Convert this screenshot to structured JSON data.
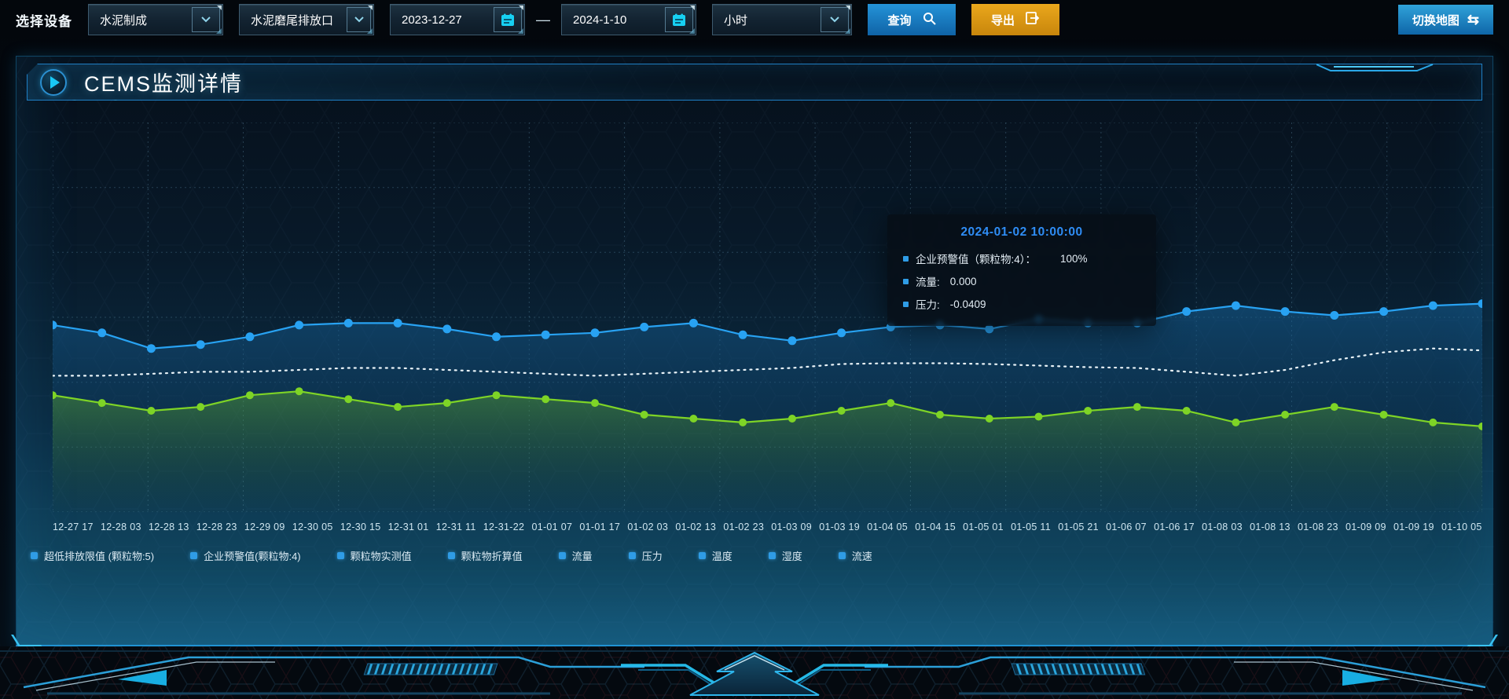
{
  "toolbar": {
    "device_label": "选择设备",
    "device_select": {
      "value": "水泥制成"
    },
    "outlet_select": {
      "value": "水泥磨尾排放口"
    },
    "date_start": {
      "value": "2023-12-27"
    },
    "range_separator": "—",
    "date_end": {
      "value": "2024-1-10"
    },
    "interval_select": {
      "value": "小时"
    },
    "query_button": "查询",
    "export_button": "导出",
    "switch_map_button": "切换地图",
    "swap_icon_glyph": "⇆"
  },
  "panel": {
    "title": "CEMS监测详情"
  },
  "tooltip": {
    "title": "2024-01-02 10:00:00",
    "marker_color": "#2f9ce6",
    "rows": [
      {
        "label": "企业预警值（颗粒物:4）：",
        "value": "100%",
        "wide_gap": true
      },
      {
        "label": "流量:",
        "value": "0.000",
        "wide_gap": false
      },
      {
        "label": "压力:",
        "value": "-0.0409",
        "wide_gap": false
      }
    ]
  },
  "legend": {
    "marker_color": "#2f9ce6",
    "items": [
      "超低排放限值 (颗粒物:5)",
      "企业预警值(颗粒物:4)",
      "颗粒物实测值",
      "颗粒物折算值",
      "流量",
      "压力",
      "温度",
      "湿度",
      "流速"
    ]
  },
  "chart_data": {
    "type": "line",
    "title": "CEMS监测详情",
    "xlabel": "",
    "ylabel": "",
    "ylim": [
      0,
      100
    ],
    "y_tick_labels_visible": false,
    "grid": {
      "rows": 6,
      "cols": 15,
      "style": "dashed",
      "color": "rgba(120,175,205,0.28)"
    },
    "x": [
      "12-27 17",
      "12-28 03",
      "12-28 13",
      "12-28 23",
      "12-29 09",
      "12-30 05",
      "12-30 15",
      "12-31 01",
      "12-31 11",
      "12-31-22",
      "01-01 07",
      "01-01 17",
      "01-02 03",
      "01-02 13",
      "01-02 23",
      "01-03 09",
      "01-03 19",
      "01-04 05",
      "01-04 15",
      "01-05 01",
      "01-05 11",
      "01-05 21",
      "01-06 07",
      "01-06 17",
      "01-08 03",
      "01-08 13",
      "01-08 23",
      "01-09 09",
      "01-09 19",
      "01-10 05"
    ],
    "series": [
      {
        "name": "blue-line",
        "color": "#28a2f2",
        "line": "solid",
        "dots": true,
        "dot_radius": 5.5,
        "area": true,
        "area_from": "rgba(21,96,150,0.55)",
        "area_to": "rgba(10,40,70,0.05)",
        "values": [
          48,
          46,
          42,
          43,
          45,
          48,
          48.5,
          48.5,
          47,
          45,
          45.5,
          46,
          47.5,
          48.5,
          45.5,
          44,
          46,
          47.5,
          48,
          47,
          49.5,
          48.5,
          48.5,
          51.5,
          53,
          51.5,
          50.5,
          51.5,
          53,
          53.5
        ]
      },
      {
        "name": "white-dotted-line",
        "color": "#e9f3f8",
        "line": "dotted",
        "dots": false,
        "area": false,
        "values": [
          35,
          35,
          35.5,
          36,
          36,
          36.5,
          37,
          37,
          36.5,
          36,
          35.5,
          35,
          35.5,
          36,
          36.5,
          37,
          38,
          38.2,
          38.2,
          38,
          37.6,
          37.2,
          37,
          36,
          35,
          36.5,
          39,
          41,
          42,
          41.5
        ]
      },
      {
        "name": "green-line",
        "color": "#7ed426",
        "line": "solid",
        "dots": true,
        "dot_radius": 5,
        "area": true,
        "area_from": "rgba(116,204,40,0.35)",
        "area_to": "rgba(60,120,30,0.02)",
        "values": [
          30,
          28,
          26,
          27,
          30,
          31,
          29,
          27,
          28,
          30,
          29,
          28,
          25,
          24,
          23,
          24,
          26,
          28,
          25,
          24,
          24.5,
          26,
          27,
          26,
          23,
          25,
          27,
          25,
          23,
          22
        ]
      }
    ],
    "legend_entries": [
      "超低排放限值 (颗粒物:5)",
      "企业预警值(颗粒物:4)",
      "颗粒物实测值",
      "颗粒物折算值",
      "流量",
      "压力",
      "温度",
      "湿度",
      "流速"
    ],
    "legend_position": "bottom"
  }
}
